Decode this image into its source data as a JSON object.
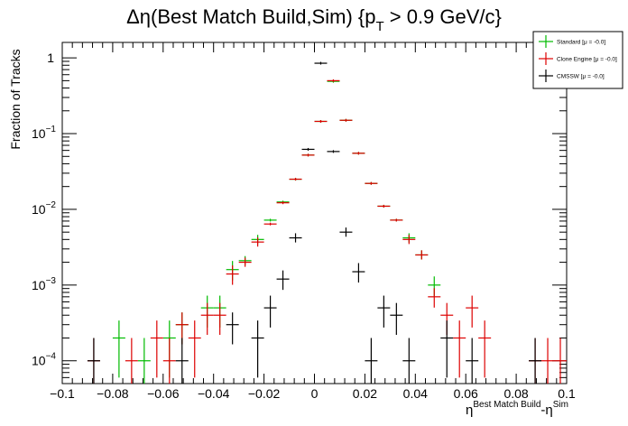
{
  "chart_data": {
    "type": "scatter",
    "title": "Δη(Best Match Build,Sim) {p",
    "title_sub": "T",
    "title_tail": " > 0.9 GeV/c}",
    "xlabel_main": "η",
    "xlabel_sup1": "Best Match Build",
    "xlabel_mid": "-η",
    "xlabel_sup2": "Sim",
    "ylabel": "Fraction of Tracks",
    "xlim": [
      -0.1,
      0.1
    ],
    "ylim": [
      5e-05,
      1.6
    ],
    "yscale": "log",
    "x_ticks": [
      {
        "value": -0.1,
        "label": "−0.1"
      },
      {
        "value": -0.08,
        "label": "−0.08"
      },
      {
        "value": -0.06,
        "label": "−0.06"
      },
      {
        "value": -0.04,
        "label": "−0.04"
      },
      {
        "value": -0.02,
        "label": "−0.02"
      },
      {
        "value": 0,
        "label": "0"
      },
      {
        "value": 0.02,
        "label": "0.02"
      },
      {
        "value": 0.04,
        "label": "0.04"
      },
      {
        "value": 0.06,
        "label": "0.06"
      },
      {
        "value": 0.08,
        "label": "0.08"
      },
      {
        "value": 0.1,
        "label": "0.1"
      }
    ],
    "y_ticks": [
      {
        "value": 1,
        "base": "1",
        "exp": ""
      },
      {
        "value": 0.1,
        "base": "10",
        "exp": "−1"
      },
      {
        "value": 0.01,
        "base": "10",
        "exp": "−2"
      },
      {
        "value": 0.001,
        "base": "10",
        "exp": "−3"
      },
      {
        "value": 0.0001,
        "base": "10",
        "exp": "−4"
      }
    ],
    "bin_half_width": 0.0025,
    "legend": {
      "position": "top-right"
    },
    "series": [
      {
        "name": "Standard  [μ = -0.0]",
        "color": "#00bb00",
        "points": [
          {
            "x": -0.0775,
            "y": 0.0002
          },
          {
            "x": -0.0675,
            "y": 0.0001
          },
          {
            "x": -0.0575,
            "y": 0.0002
          },
          {
            "x": -0.0525,
            "y": 0.0003
          },
          {
            "x": -0.0425,
            "y": 0.0005
          },
          {
            "x": -0.0375,
            "y": 0.0005
          },
          {
            "x": -0.0325,
            "y": 0.0016
          },
          {
            "x": -0.0275,
            "y": 0.0021
          },
          {
            "x": -0.0225,
            "y": 0.004
          },
          {
            "x": -0.0175,
            "y": 0.0072
          },
          {
            "x": -0.0125,
            "y": 0.0125
          },
          {
            "x": -0.0075,
            "y": 0.025
          },
          {
            "x": -0.0025,
            "y": 0.052
          },
          {
            "x": 0.0025,
            "y": 0.145
          },
          {
            "x": 0.0075,
            "y": 0.49
          },
          {
            "x": 0.0125,
            "y": 0.15
          },
          {
            "x": 0.0175,
            "y": 0.055
          },
          {
            "x": 0.0225,
            "y": 0.022
          },
          {
            "x": 0.0275,
            "y": 0.011
          },
          {
            "x": 0.0325,
            "y": 0.0072
          },
          {
            "x": 0.0375,
            "y": 0.0042
          },
          {
            "x": 0.0425,
            "y": 0.0025
          },
          {
            "x": 0.0475,
            "y": 0.001
          }
        ]
      },
      {
        "name": "Clone Engine  [μ = -0.0]",
        "color": "#dd0000",
        "points": [
          {
            "x": -0.0875,
            "y": 0.0001
          },
          {
            "x": -0.0725,
            "y": 0.0001
          },
          {
            "x": -0.0625,
            "y": 0.0002
          },
          {
            "x": -0.0575,
            "y": 0.0001
          },
          {
            "x": -0.0525,
            "y": 0.0003
          },
          {
            "x": -0.0475,
            "y": 0.0002
          },
          {
            "x": -0.0425,
            "y": 0.0004
          },
          {
            "x": -0.0375,
            "y": 0.0004
          },
          {
            "x": -0.0325,
            "y": 0.0014
          },
          {
            "x": -0.0275,
            "y": 0.002
          },
          {
            "x": -0.0225,
            "y": 0.0037
          },
          {
            "x": -0.0175,
            "y": 0.0064
          },
          {
            "x": -0.0125,
            "y": 0.0122
          },
          {
            "x": -0.0075,
            "y": 0.025
          },
          {
            "x": -0.0025,
            "y": 0.052
          },
          {
            "x": 0.0025,
            "y": 0.145
          },
          {
            "x": 0.0075,
            "y": 0.5
          },
          {
            "x": 0.0125,
            "y": 0.15
          },
          {
            "x": 0.0175,
            "y": 0.055
          },
          {
            "x": 0.0225,
            "y": 0.022
          },
          {
            "x": 0.0275,
            "y": 0.011
          },
          {
            "x": 0.0325,
            "y": 0.0072
          },
          {
            "x": 0.0375,
            "y": 0.004
          },
          {
            "x": 0.0425,
            "y": 0.0025
          },
          {
            "x": 0.0475,
            "y": 0.0007
          },
          {
            "x": 0.0525,
            "y": 0.0004
          },
          {
            "x": 0.0575,
            "y": 0.0002
          },
          {
            "x": 0.0625,
            "y": 0.0005
          },
          {
            "x": 0.0675,
            "y": 0.0002
          },
          {
            "x": 0.0875,
            "y": 0.0001
          },
          {
            "x": 0.0925,
            "y": 0.0001
          },
          {
            "x": 0.0975,
            "y": 0.0001
          }
        ]
      },
      {
        "name": "CMSSW  [μ = -0.0]",
        "color": "#000000",
        "points": [
          {
            "x": -0.0875,
            "y": 0.0001
          },
          {
            "x": -0.0525,
            "y": 0.0001
          },
          {
            "x": -0.0325,
            "y": 0.0003
          },
          {
            "x": -0.0225,
            "y": 0.0002
          },
          {
            "x": -0.0175,
            "y": 0.0005
          },
          {
            "x": -0.0125,
            "y": 0.0012
          },
          {
            "x": -0.0075,
            "y": 0.0042
          },
          {
            "x": -0.0025,
            "y": 0.062
          },
          {
            "x": 0.0025,
            "y": 0.85
          },
          {
            "x": 0.0075,
            "y": 0.058
          },
          {
            "x": 0.0125,
            "y": 0.005
          },
          {
            "x": 0.0175,
            "y": 0.0015
          },
          {
            "x": 0.0225,
            "y": 0.0001
          },
          {
            "x": 0.0275,
            "y": 0.0005
          },
          {
            "x": 0.0325,
            "y": 0.0004
          },
          {
            "x": 0.0375,
            "y": 0.0001
          },
          {
            "x": 0.0525,
            "y": 0.0002
          },
          {
            "x": 0.0625,
            "y": 0.0001
          },
          {
            "x": 0.0875,
            "y": 0.0001
          }
        ]
      }
    ]
  }
}
